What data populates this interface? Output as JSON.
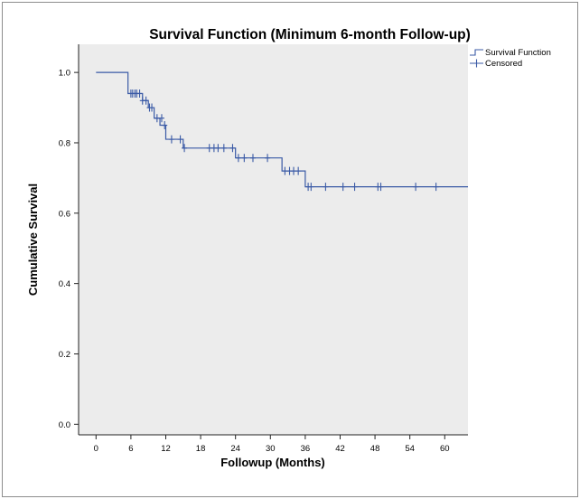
{
  "chart_data": {
    "type": "line",
    "title": "Survival Function (Minimum 6-month Follow-up)",
    "xlabel": "Followup (Months)",
    "ylabel": "Cumulative Survival",
    "xlim": [
      -3,
      64
    ],
    "ylim": [
      -0.03,
      1.08
    ],
    "x_ticks": [
      0,
      6,
      12,
      18,
      24,
      30,
      36,
      42,
      48,
      54,
      60
    ],
    "y_ticks": [
      0.0,
      0.2,
      0.4,
      0.6,
      0.8,
      1.0
    ],
    "y_tick_labels": [
      "0.0",
      "0.2",
      "0.4",
      "0.6",
      "0.8",
      "1.0"
    ],
    "grid": false,
    "legend": {
      "position": "top-right",
      "entries": [
        "Survival Function",
        "Censored"
      ]
    },
    "colors": {
      "line": "#3a5aa6",
      "plot_background": "#ececec",
      "axis": "#222222"
    },
    "series": [
      {
        "name": "Survival Function",
        "x": [
          0,
          4,
          5.5,
          8,
          9,
          10,
          11,
          12,
          13,
          15,
          24,
          32,
          36,
          64
        ],
        "y": [
          1.0,
          1.0,
          0.94,
          0.92,
          0.9,
          0.87,
          0.85,
          0.81,
          0.81,
          0.785,
          0.757,
          0.72,
          0.675,
          0.675
        ]
      },
      {
        "name": "Censored",
        "x": [
          6,
          6.3,
          6.7,
          7,
          7.5,
          8,
          8.6,
          9.2,
          9.6,
          10.5,
          11.3,
          11.8,
          13,
          14.5,
          15.2,
          19.5,
          20.3,
          21,
          22,
          23.5,
          24.5,
          25.5,
          27,
          29.5,
          32.5,
          33.3,
          34,
          34.8,
          36.5,
          37,
          39.5,
          42.5,
          44.5,
          48.5,
          49,
          55,
          58.5
        ],
        "y": [
          0.94,
          0.94,
          0.94,
          0.94,
          0.94,
          0.92,
          0.92,
          0.9,
          0.9,
          0.87,
          0.87,
          0.85,
          0.81,
          0.81,
          0.785,
          0.785,
          0.785,
          0.785,
          0.785,
          0.785,
          0.757,
          0.757,
          0.757,
          0.757,
          0.72,
          0.72,
          0.72,
          0.72,
          0.675,
          0.675,
          0.675,
          0.675,
          0.675,
          0.675,
          0.675,
          0.675,
          0.675
        ]
      }
    ]
  }
}
